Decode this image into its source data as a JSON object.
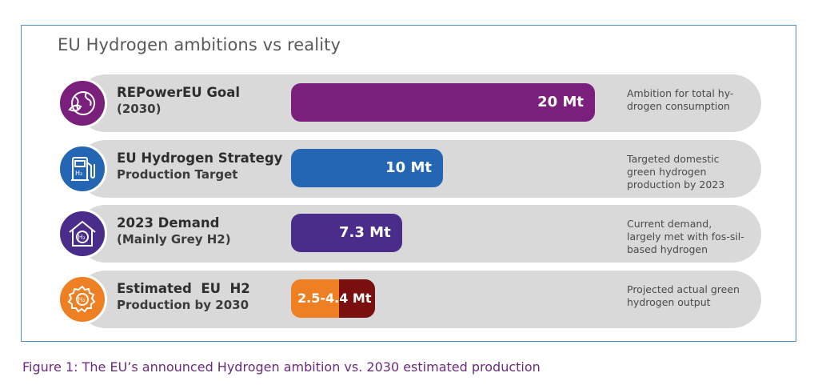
{
  "chart_data": {
    "type": "bar",
    "orientation": "horizontal",
    "title": "EU Hydrogen ambitions vs reality",
    "unit": "Mt",
    "categories": [
      "REPowerEU Goal (2030)",
      "EU Hydrogen Strategy Production Target",
      "2023 Demand (Mainly Grey H2)",
      "Estimated EU H2 Production by 2030"
    ],
    "values": [
      20,
      10,
      7.3,
      [
        2.5,
        4.4
      ]
    ],
    "xlim": [
      0,
      20
    ],
    "legend": "none",
    "grid": false
  },
  "title": "EU Hydrogen ambitions vs reality",
  "caption": "Figure 1: The EU’s announced Hydrogen ambition vs. 2030 estimated production",
  "colors": {
    "purple": "#7b1f7c",
    "blue": "#2466b3",
    "indigo": "#4a2d8a",
    "orange": "#ee7f23",
    "darkred": "#7a0f0f"
  },
  "rows": [
    {
      "label_line1": "REPowerEU Goal",
      "label_line2": "(2030)",
      "value_label": "20 Mt",
      "value": 20,
      "note": "Ambition for total hy-drogen consumption",
      "icon": "globe-leaf-icon",
      "color": "#7b1f7c"
    },
    {
      "label_line1": "EU Hydrogen Strategy",
      "label_line2": "Production Target",
      "value_label": "10 Mt",
      "value": 10,
      "note": "Targeted domestic green hydrogen production by 2023",
      "icon": "h2-fuel-pump-icon",
      "color": "#2466b3"
    },
    {
      "label_line1": "2023 Demand",
      "label_line2": "(Mainly Grey H2)",
      "value_label": "7.3 Mt",
      "value": 7.3,
      "note": "Current demand, largely met with fos-sil-based hydrogen",
      "icon": "h2-house-icon",
      "color": "#4a2d8a"
    },
    {
      "label_line1": "Estimated  EU  H2",
      "label_line2": "Production by 2030",
      "value_label": "2.5-4.4 Mt",
      "value_low": 2.5,
      "value_high": 4.4,
      "note": "Projected actual green hydrogen output",
      "icon": "h2-gear-icon",
      "color": "#ee7f23",
      "color_high": "#7a0f0f"
    }
  ]
}
